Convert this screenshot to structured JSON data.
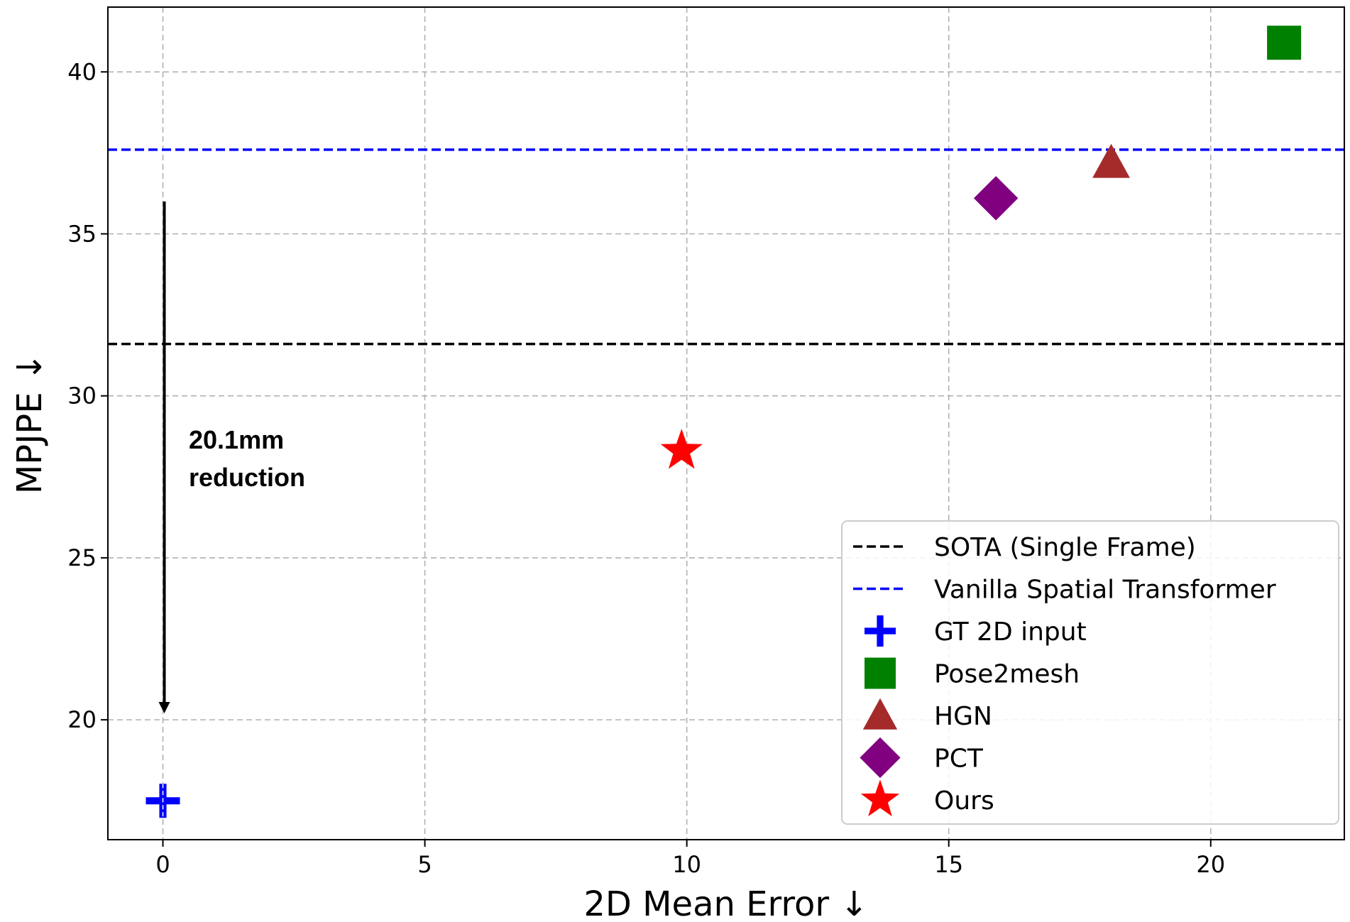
{
  "chart_data": {
    "type": "scatter",
    "xlabel": "2D Mean Error ↓",
    "ylabel": "MPJPE ↓",
    "xlim": [
      -1.05,
      22.55
    ],
    "ylim": [
      16.3,
      42.0
    ],
    "xticks": [
      0,
      5,
      10,
      15,
      20
    ],
    "yticks": [
      20,
      25,
      30,
      35,
      40
    ],
    "grid": true,
    "legend_position": "lower-right",
    "hlines": [
      {
        "name": "SOTA (Single Frame)",
        "y": 31.6,
        "color": "#000000",
        "style": "dashed"
      },
      {
        "name": "Vanilla Spatial Transformer",
        "y": 37.6,
        "color": "#0000ff",
        "style": "dashed"
      }
    ],
    "series": [
      {
        "name": "GT 2D input",
        "marker": "plus",
        "color": "#0000ff",
        "x": 0,
        "y": 17.5
      },
      {
        "name": "Pose2mesh",
        "marker": "square",
        "color": "#008000",
        "x": 21.4,
        "y": 40.9
      },
      {
        "name": "HGN",
        "marker": "triangle",
        "color": "#a52a2a",
        "x": 18.1,
        "y": 37.2
      },
      {
        "name": "PCT",
        "marker": "diamond",
        "color": "#800080",
        "x": 15.9,
        "y": 36.1
      },
      {
        "name": "Ours",
        "marker": "star",
        "color": "#ff0000",
        "x": 9.9,
        "y": 28.3
      }
    ],
    "annotation": {
      "lines": [
        "20.1mm",
        "reduction"
      ],
      "arrow_from": [
        0,
        36.0
      ],
      "arrow_to": [
        0,
        20.2
      ]
    }
  }
}
